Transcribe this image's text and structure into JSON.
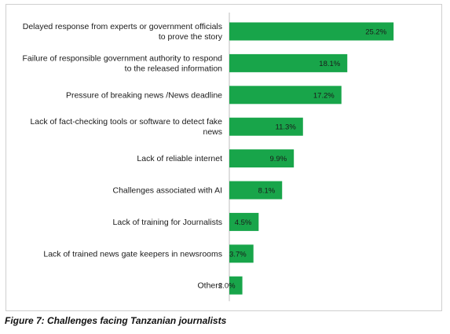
{
  "caption": "Figure 7: Challenges facing Tanzanian journalists",
  "chart_data": {
    "type": "bar",
    "orientation": "horizontal",
    "title": "",
    "xlabel": "",
    "ylabel": "",
    "grid": false,
    "legend": "none",
    "bar_color": "#18a54a",
    "xlim": [
      0,
      35
    ],
    "categories": [
      "Delayed response from experts or government  officials\nto prove the  story",
      "Failure of  responsible government authority  to respond\nto the  released information",
      "Pressure of breaking news /News deadline",
      "Lack of fact-checking tools or software to detect fake\nnews",
      "Lack of reliable internet",
      "Challenges  associated with AI",
      "Lack of training for Journalists",
      "Lack of trained news gate keepers in newsrooms",
      "Others"
    ],
    "values": [
      25.2,
      18.1,
      17.2,
      11.3,
      9.9,
      8.1,
      4.5,
      3.7,
      2.0
    ],
    "data_labels": [
      "25.2%",
      "18.1%",
      "17.2%",
      "11.3%",
      "9.9%",
      "8.1%",
      "4.5%",
      "3.7%",
      "2.0%"
    ]
  }
}
